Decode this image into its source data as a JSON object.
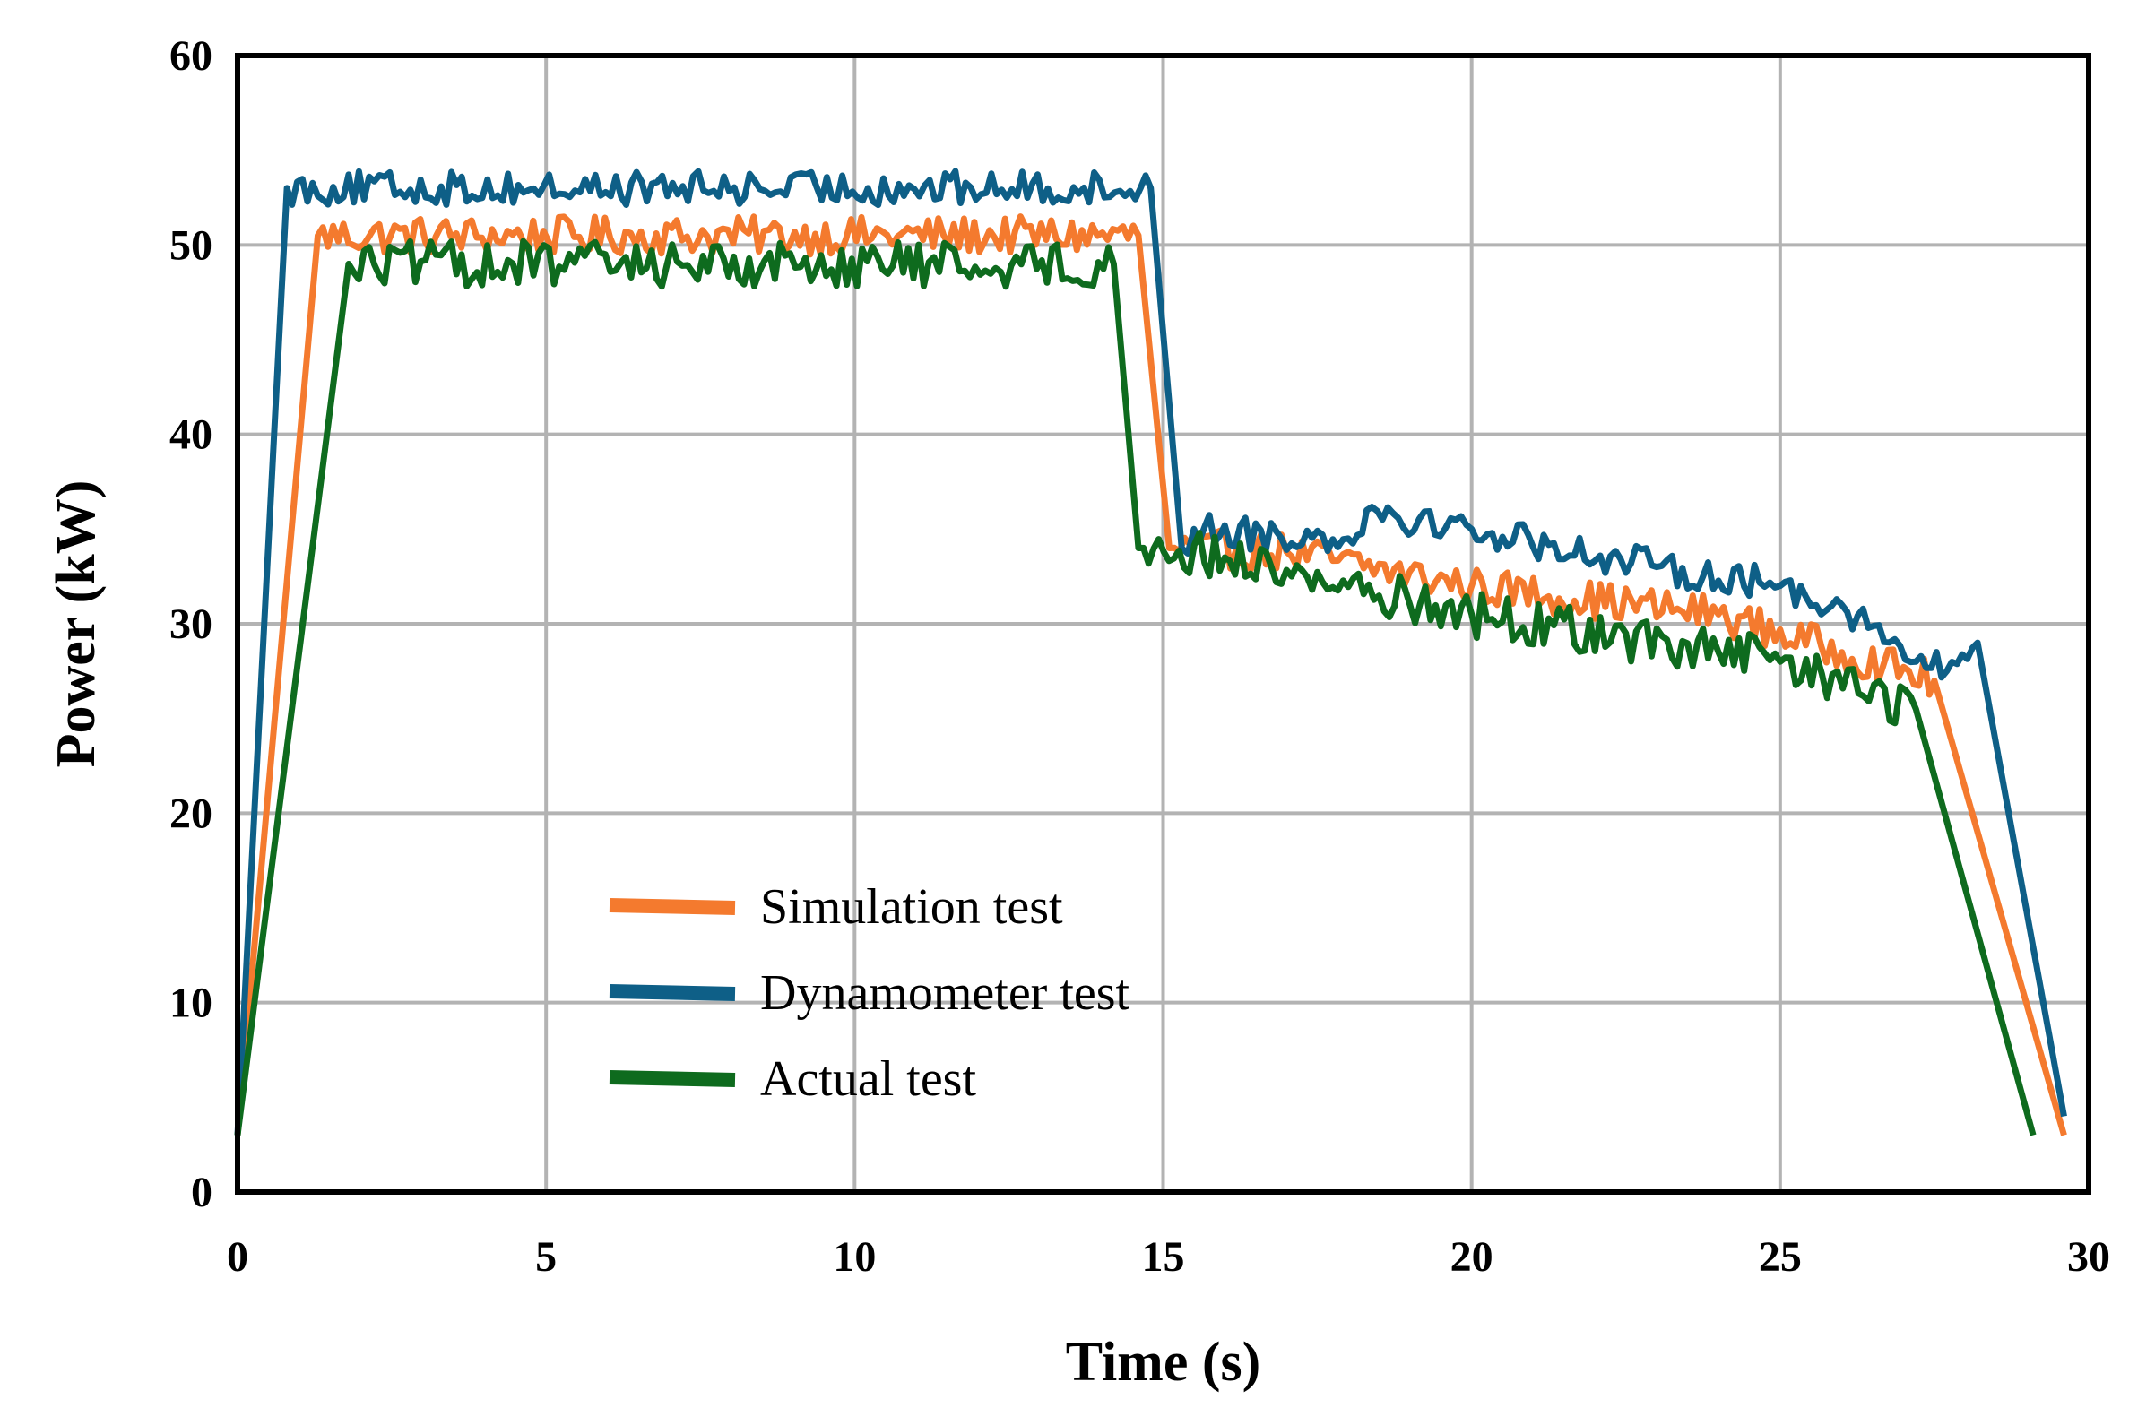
{
  "chart_data": {
    "type": "line",
    "title": "",
    "xlabel": "Time (s)",
    "ylabel": "Power (kW)",
    "xlim": [
      0,
      30
    ],
    "ylim": [
      0,
      60
    ],
    "xticks": [
      0,
      5,
      10,
      15,
      20,
      25,
      30
    ],
    "yticks": [
      0,
      10,
      20,
      30,
      40,
      50,
      60
    ],
    "grid": true,
    "legend_position": "center-left",
    "series": [
      {
        "name": "Simulation test",
        "color": "#F47A2E",
        "noise": 1.0,
        "points": [
          [
            0,
            3
          ],
          [
            1.3,
            50.5
          ],
          [
            14.6,
            50.5
          ],
          [
            15.1,
            34
          ],
          [
            17,
            33.8
          ],
          [
            20,
            32
          ],
          [
            24,
            30.5
          ],
          [
            26,
            28.5
          ],
          [
            27.5,
            27
          ],
          [
            29.6,
            3
          ]
        ]
      },
      {
        "name": "Dynamometer test",
        "color": "#0E5F87",
        "noise": 0.9,
        "points": [
          [
            0,
            3
          ],
          [
            0.8,
            53
          ],
          [
            14.8,
            53
          ],
          [
            15.3,
            34
          ],
          [
            15.5,
            35
          ],
          [
            18,
            34.5
          ],
          [
            18.3,
            36
          ],
          [
            20,
            35
          ],
          [
            23,
            33
          ],
          [
            25,
            32
          ],
          [
            26,
            31
          ],
          [
            27.2,
            28
          ],
          [
            27.7,
            27.5
          ],
          [
            28.2,
            29
          ],
          [
            29.6,
            4
          ]
        ]
      },
      {
        "name": "Actual test",
        "color": "#0E6B1E",
        "noise": 1.2,
        "points": [
          [
            0,
            3
          ],
          [
            1.8,
            49
          ],
          [
            14.2,
            49
          ],
          [
            14.6,
            34
          ],
          [
            16,
            33.5
          ],
          [
            20,
            30.5
          ],
          [
            24,
            28.5
          ],
          [
            25,
            28
          ],
          [
            27.2,
            25.5
          ],
          [
            29.1,
            3
          ]
        ]
      }
    ]
  }
}
